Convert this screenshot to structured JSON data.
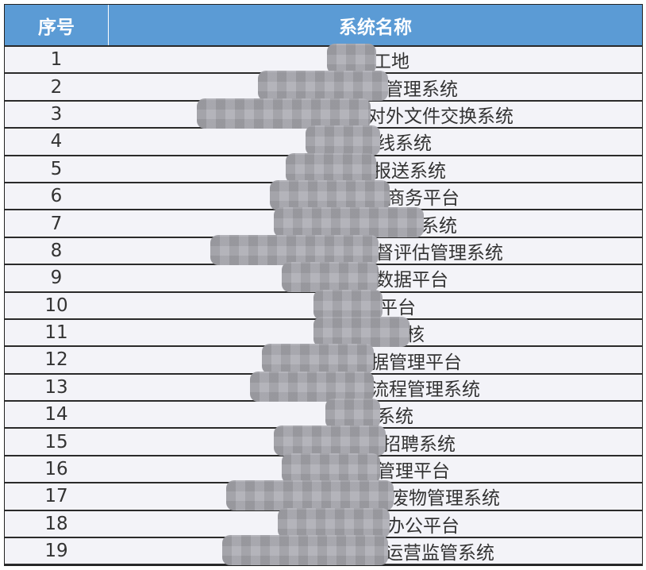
{
  "table": {
    "headers": {
      "index": "序号",
      "name": "系统名称"
    },
    "header_color": "#5b9bd5",
    "rows": [
      {
        "index": "1",
        "name_visible": "工地"
      },
      {
        "index": "2",
        "name_visible": "管理系统"
      },
      {
        "index": "3",
        "name_visible": "对外文件交换系统"
      },
      {
        "index": "4",
        "name_visible": "线系统"
      },
      {
        "index": "5",
        "name_visible": "报送系统"
      },
      {
        "index": "6",
        "name_visible": "商务平台"
      },
      {
        "index": "7",
        "name_visible": "系统"
      },
      {
        "index": "8",
        "name_visible": "督评估管理系统"
      },
      {
        "index": "9",
        "name_visible": "数据平台"
      },
      {
        "index": "10",
        "name_visible": "平台"
      },
      {
        "index": "11",
        "name_visible": "核"
      },
      {
        "index": "12",
        "name_visible": "据管理平台"
      },
      {
        "index": "13",
        "name_visible": "流程管理系统"
      },
      {
        "index": "14",
        "name_visible": "系统"
      },
      {
        "index": "15",
        "name_visible": "招聘系统"
      },
      {
        "index": "16",
        "name_visible": "管理平台"
      },
      {
        "index": "17",
        "name_visible": "废物管理系统"
      },
      {
        "index": "18",
        "name_visible": "办公平台"
      },
      {
        "index": "19",
        "name_visible": "运营监管系统"
      }
    ]
  }
}
